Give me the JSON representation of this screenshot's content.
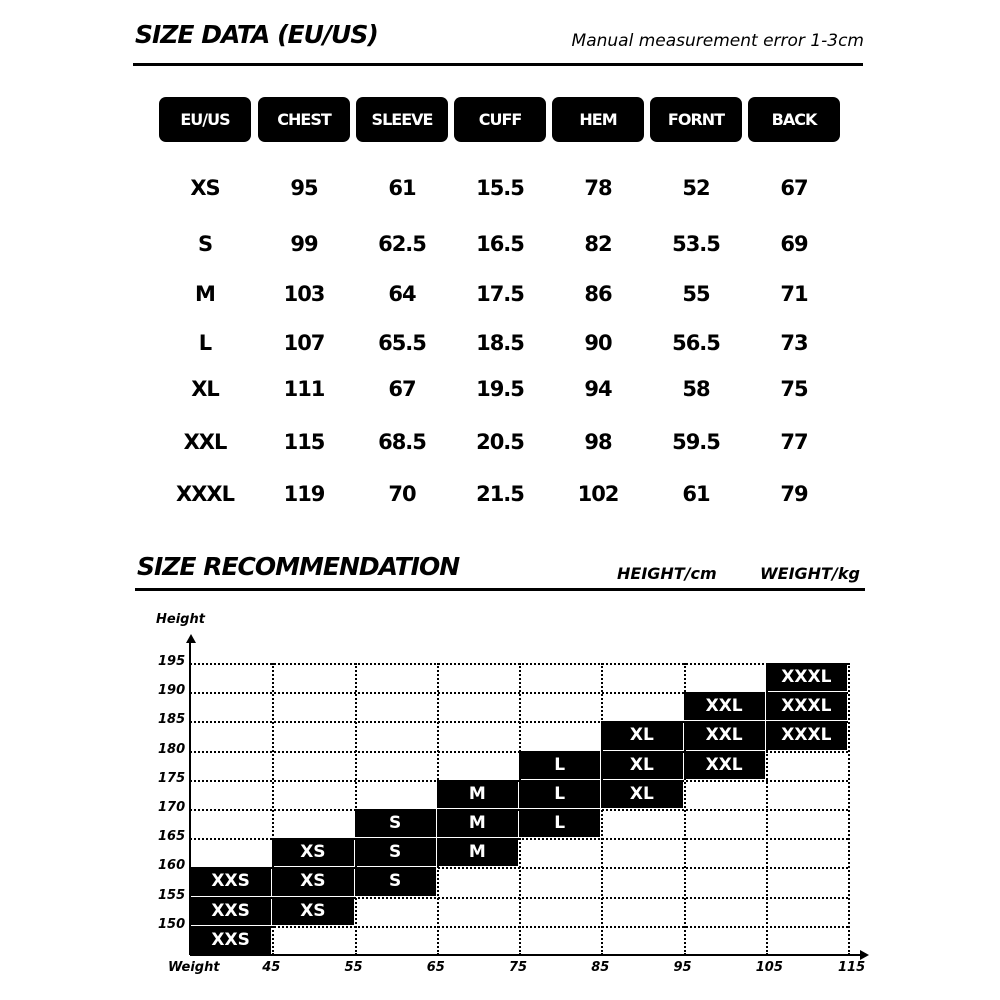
{
  "size_data": {
    "title": "SIZE DATA (EU/US)",
    "note": "Manual measurement error 1-3cm",
    "headers": [
      "EU/US",
      "CHEST",
      "SLEEVE",
      "CUFF",
      "HEM",
      "FORNT",
      "BACK"
    ],
    "rows": [
      [
        "XS",
        "95",
        "61",
        "15.5",
        "78",
        "52",
        "67"
      ],
      [
        "S",
        "99",
        "62.5",
        "16.5",
        "82",
        "53.5",
        "69"
      ],
      [
        "M",
        "103",
        "64",
        "17.5",
        "86",
        "55",
        "71"
      ],
      [
        "L",
        "107",
        "65.5",
        "18.5",
        "90",
        "56.5",
        "73"
      ],
      [
        "XL",
        "111",
        "67",
        "19.5",
        "94",
        "58",
        "75"
      ],
      [
        "XXL",
        "115",
        "68.5",
        "20.5",
        "98",
        "59.5",
        "77"
      ],
      [
        "XXXL",
        "119",
        "70",
        "21.5",
        "102",
        "61",
        "79"
      ]
    ]
  },
  "recommendation": {
    "title": "SIZE RECOMMENDATION",
    "height_unit": "HEIGHT/cm",
    "weight_unit": "WEIGHT/kg",
    "y_label": "Height",
    "x_label": "Weight",
    "x_ticks": [
      "45",
      "55",
      "65",
      "75",
      "85",
      "95",
      "105",
      "115"
    ],
    "y_ticks": [
      "195",
      "190",
      "185",
      "180",
      "175",
      "170",
      "165",
      "160",
      "155",
      "150"
    ],
    "cells": [
      {
        "size": "XXS",
        "weight": [
          35,
          45
        ],
        "height": [
          145,
          150
        ]
      },
      {
        "size": "XXS",
        "weight": [
          35,
          45
        ],
        "height": [
          150,
          155
        ]
      },
      {
        "size": "XXS",
        "weight": [
          35,
          45
        ],
        "height": [
          155,
          160
        ]
      },
      {
        "size": "XS",
        "weight": [
          45,
          55
        ],
        "height": [
          150,
          155
        ]
      },
      {
        "size": "XS",
        "weight": [
          45,
          55
        ],
        "height": [
          155,
          160
        ]
      },
      {
        "size": "XS",
        "weight": [
          45,
          55
        ],
        "height": [
          160,
          165
        ]
      },
      {
        "size": "S",
        "weight": [
          55,
          65
        ],
        "height": [
          155,
          160
        ]
      },
      {
        "size": "S",
        "weight": [
          55,
          65
        ],
        "height": [
          160,
          165
        ]
      },
      {
        "size": "S",
        "weight": [
          55,
          65
        ],
        "height": [
          165,
          170
        ]
      },
      {
        "size": "M",
        "weight": [
          65,
          75
        ],
        "height": [
          160,
          165
        ]
      },
      {
        "size": "M",
        "weight": [
          65,
          75
        ],
        "height": [
          165,
          170
        ]
      },
      {
        "size": "M",
        "weight": [
          65,
          75
        ],
        "height": [
          170,
          175
        ]
      },
      {
        "size": "L",
        "weight": [
          75,
          85
        ],
        "height": [
          165,
          170
        ]
      },
      {
        "size": "L",
        "weight": [
          75,
          85
        ],
        "height": [
          170,
          175
        ]
      },
      {
        "size": "L",
        "weight": [
          75,
          85
        ],
        "height": [
          175,
          180
        ]
      },
      {
        "size": "XL",
        "weight": [
          85,
          95
        ],
        "height": [
          170,
          175
        ]
      },
      {
        "size": "XL",
        "weight": [
          85,
          95
        ],
        "height": [
          175,
          180
        ]
      },
      {
        "size": "XL",
        "weight": [
          85,
          95
        ],
        "height": [
          180,
          185
        ]
      },
      {
        "size": "XXL",
        "weight": [
          95,
          105
        ],
        "height": [
          175,
          180
        ]
      },
      {
        "size": "XXL",
        "weight": [
          95,
          105
        ],
        "height": [
          180,
          185
        ]
      },
      {
        "size": "XXL",
        "weight": [
          95,
          105
        ],
        "height": [
          185,
          190
        ]
      },
      {
        "size": "XXXL",
        "weight": [
          105,
          115
        ],
        "height": [
          180,
          185
        ]
      },
      {
        "size": "XXXL",
        "weight": [
          105,
          115
        ],
        "height": [
          185,
          190
        ]
      },
      {
        "size": "XXXL",
        "weight": [
          105,
          115
        ],
        "height": [
          190,
          195
        ]
      }
    ]
  }
}
